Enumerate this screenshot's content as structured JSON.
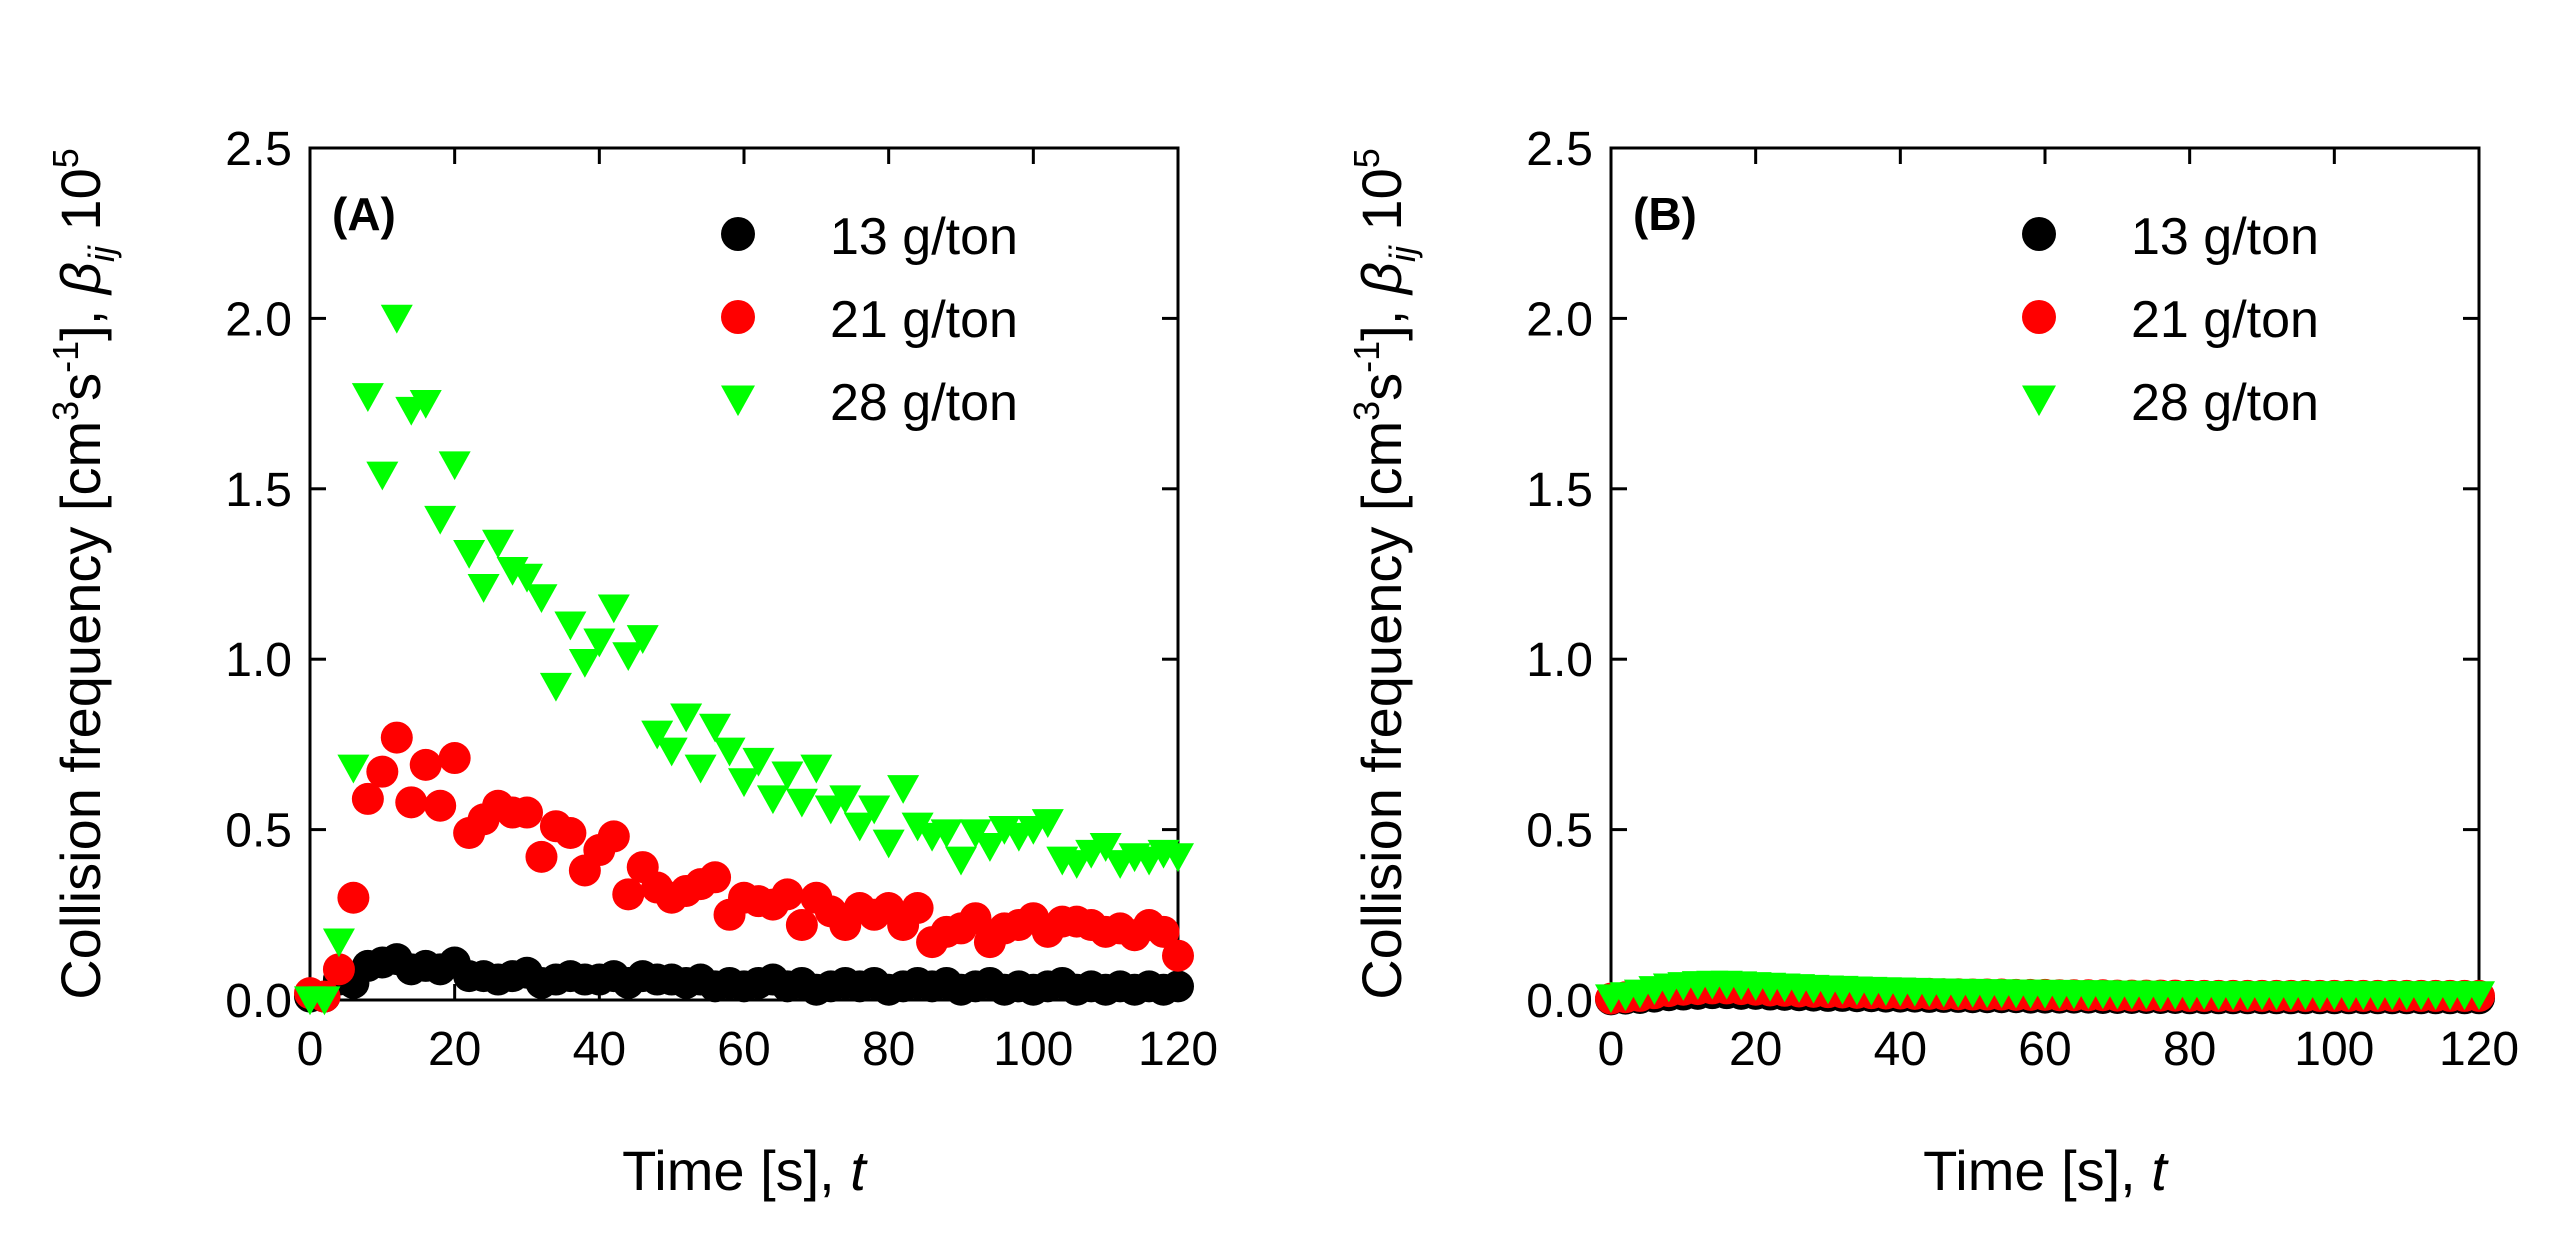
{
  "chart_data": [
    {
      "type": "scatter",
      "panel_label": "(A)",
      "xlabel": "Time [s], t",
      "ylabel": "Collision frequency [cm3s-1], βij 105",
      "xlim": [
        0,
        120
      ],
      "ylim": [
        0,
        2.5
      ],
      "x_ticks": [
        "0",
        "20",
        "40",
        "60",
        "80",
        "100",
        "120"
      ],
      "y_ticks": [
        "0.0",
        "0.5",
        "1.0",
        "1.5",
        "2.0",
        "2.5"
      ],
      "legend_position": "top-right",
      "series": [
        {
          "name": "13 g/ton",
          "marker": "circle",
          "color": "#000000",
          "x": [
            0,
            2,
            4,
            6,
            8,
            10,
            12,
            14,
            16,
            18,
            20,
            22,
            24,
            26,
            28,
            30,
            32,
            34,
            36,
            38,
            40,
            42,
            44,
            46,
            48,
            50,
            52,
            54,
            56,
            58,
            60,
            62,
            64,
            66,
            68,
            70,
            72,
            74,
            76,
            78,
            80,
            82,
            84,
            86,
            88,
            90,
            92,
            94,
            96,
            98,
            100,
            102,
            104,
            106,
            108,
            110,
            112,
            114,
            116,
            118,
            120
          ],
          "y": [
            0.01,
            0.01,
            0.06,
            0.05,
            0.1,
            0.11,
            0.12,
            0.09,
            0.1,
            0.09,
            0.11,
            0.07,
            0.07,
            0.06,
            0.07,
            0.08,
            0.05,
            0.06,
            0.07,
            0.06,
            0.06,
            0.07,
            0.05,
            0.07,
            0.06,
            0.06,
            0.05,
            0.06,
            0.04,
            0.05,
            0.04,
            0.05,
            0.06,
            0.04,
            0.05,
            0.03,
            0.04,
            0.05,
            0.04,
            0.05,
            0.03,
            0.04,
            0.05,
            0.04,
            0.05,
            0.03,
            0.04,
            0.05,
            0.03,
            0.04,
            0.03,
            0.04,
            0.05,
            0.03,
            0.04,
            0.03,
            0.04,
            0.03,
            0.04,
            0.03,
            0.04
          ]
        },
        {
          "name": "21 g/ton",
          "marker": "circle",
          "color": "#ff0000",
          "x": [
            0,
            2,
            4,
            6,
            8,
            10,
            12,
            14,
            16,
            18,
            20,
            22,
            24,
            26,
            28,
            30,
            32,
            34,
            36,
            38,
            40,
            42,
            44,
            46,
            48,
            50,
            52,
            54,
            56,
            58,
            60,
            62,
            64,
            66,
            68,
            70,
            72,
            74,
            76,
            78,
            80,
            82,
            84,
            86,
            88,
            90,
            92,
            94,
            96,
            98,
            100,
            102,
            104,
            106,
            108,
            110,
            112,
            114,
            116,
            118,
            120
          ],
          "y": [
            0.02,
            0.01,
            0.09,
            0.3,
            0.59,
            0.67,
            0.77,
            0.58,
            0.69,
            0.57,
            0.71,
            0.49,
            0.53,
            0.57,
            0.55,
            0.55,
            0.42,
            0.51,
            0.49,
            0.38,
            0.44,
            0.48,
            0.31,
            0.39,
            0.33,
            0.3,
            0.32,
            0.34,
            0.36,
            0.25,
            0.3,
            0.29,
            0.28,
            0.31,
            0.22,
            0.3,
            0.26,
            0.22,
            0.27,
            0.25,
            0.27,
            0.22,
            0.27,
            0.17,
            0.2,
            0.21,
            0.24,
            0.17,
            0.21,
            0.22,
            0.24,
            0.2,
            0.23,
            0.23,
            0.22,
            0.2,
            0.21,
            0.19,
            0.22,
            0.2,
            0.13
          ]
        },
        {
          "name": "28 g/ton",
          "marker": "triangle-down",
          "color": "#00ff00",
          "x": [
            0,
            2,
            4,
            6,
            8,
            10,
            12,
            14,
            16,
            18,
            20,
            22,
            24,
            26,
            28,
            30,
            32,
            34,
            36,
            38,
            40,
            42,
            44,
            46,
            48,
            50,
            52,
            54,
            56,
            58,
            60,
            62,
            64,
            66,
            68,
            70,
            72,
            74,
            76,
            78,
            80,
            82,
            84,
            86,
            88,
            90,
            92,
            94,
            96,
            98,
            100,
            102,
            104,
            106,
            108,
            110,
            112,
            114,
            116,
            118,
            120
          ],
          "y": [
            0.0,
            0.0,
            0.17,
            0.68,
            1.77,
            1.54,
            2.0,
            1.73,
            1.75,
            1.41,
            1.57,
            1.31,
            1.21,
            1.34,
            1.26,
            1.24,
            1.18,
            0.92,
            1.1,
            0.99,
            1.05,
            1.15,
            1.01,
            1.06,
            0.78,
            0.73,
            0.83,
            0.68,
            0.8,
            0.73,
            0.64,
            0.7,
            0.59,
            0.66,
            0.58,
            0.68,
            0.56,
            0.59,
            0.51,
            0.56,
            0.46,
            0.62,
            0.51,
            0.48,
            0.49,
            0.41,
            0.49,
            0.45,
            0.5,
            0.48,
            0.5,
            0.52,
            0.41,
            0.4,
            0.43,
            0.45,
            0.4,
            0.42,
            0.41,
            0.43,
            0.42
          ]
        }
      ]
    },
    {
      "type": "scatter",
      "panel_label": "(B)",
      "xlabel": "Time [s], t",
      "ylabel": "Collision frequency [cm3s-1], βij 105",
      "xlim": [
        0,
        120
      ],
      "ylim": [
        0,
        2.5
      ],
      "x_ticks": [
        "0",
        "20",
        "40",
        "60",
        "80",
        "100",
        "120"
      ],
      "y_ticks": [
        "0.0",
        "0.5",
        "1.0",
        "1.5",
        "2.0",
        "2.5"
      ],
      "legend_position": "top-right",
      "series": [
        {
          "name": "13 g/ton",
          "marker": "circle",
          "color": "#000000",
          "x": [
            0,
            2,
            4,
            6,
            8,
            10,
            12,
            14,
            16,
            18,
            20,
            22,
            24,
            26,
            28,
            30,
            32,
            34,
            36,
            38,
            40,
            42,
            44,
            46,
            48,
            50,
            52,
            54,
            56,
            58,
            60,
            62,
            64,
            66,
            68,
            70,
            72,
            74,
            76,
            78,
            80,
            82,
            84,
            86,
            88,
            90,
            92,
            94,
            96,
            98,
            100,
            102,
            104,
            106,
            108,
            110,
            112,
            114,
            116,
            118,
            120
          ],
          "y": [
            0.002,
            0.004,
            0.006,
            0.01,
            0.014,
            0.016,
            0.018,
            0.02,
            0.02,
            0.018,
            0.018,
            0.016,
            0.015,
            0.014,
            0.013,
            0.012,
            0.012,
            0.011,
            0.011,
            0.01,
            0.01,
            0.01,
            0.009,
            0.009,
            0.009,
            0.008,
            0.008,
            0.008,
            0.008,
            0.007,
            0.007,
            0.007,
            0.007,
            0.007,
            0.006,
            0.006,
            0.006,
            0.006,
            0.006,
            0.006,
            0.005,
            0.005,
            0.005,
            0.005,
            0.005,
            0.005,
            0.005,
            0.005,
            0.005,
            0.005,
            0.005,
            0.005,
            0.005,
            0.005,
            0.005,
            0.005,
            0.005,
            0.005,
            0.005,
            0.005,
            0.005
          ]
        },
        {
          "name": "21 g/ton",
          "marker": "circle",
          "color": "#ff0000",
          "x": [
            0,
            2,
            4,
            6,
            8,
            10,
            12,
            14,
            16,
            18,
            20,
            22,
            24,
            26,
            28,
            30,
            32,
            34,
            36,
            38,
            40,
            42,
            44,
            46,
            48,
            50,
            52,
            54,
            56,
            58,
            60,
            62,
            64,
            66,
            68,
            70,
            72,
            74,
            76,
            78,
            80,
            82,
            84,
            86,
            88,
            90,
            92,
            94,
            96,
            98,
            100,
            102,
            104,
            106,
            108,
            110,
            112,
            114,
            116,
            118,
            120
          ],
          "y": [
            0.004,
            0.008,
            0.012,
            0.02,
            0.026,
            0.03,
            0.032,
            0.034,
            0.034,
            0.032,
            0.03,
            0.028,
            0.027,
            0.025,
            0.024,
            0.023,
            0.022,
            0.021,
            0.02,
            0.019,
            0.019,
            0.018,
            0.018,
            0.017,
            0.017,
            0.016,
            0.016,
            0.016,
            0.015,
            0.015,
            0.015,
            0.014,
            0.014,
            0.014,
            0.014,
            0.013,
            0.013,
            0.013,
            0.013,
            0.013,
            0.012,
            0.012,
            0.012,
            0.012,
            0.012,
            0.012,
            0.012,
            0.012,
            0.012,
            0.012,
            0.012,
            0.012,
            0.012,
            0.012,
            0.012,
            0.012,
            0.012,
            0.012,
            0.012,
            0.012,
            0.012
          ]
        },
        {
          "name": "28 g/ton",
          "marker": "triangle-down",
          "color": "#00ff00",
          "x": [
            0,
            2,
            4,
            6,
            8,
            10,
            12,
            14,
            16,
            18,
            20,
            22,
            24,
            26,
            28,
            30,
            32,
            34,
            36,
            38,
            40,
            42,
            44,
            46,
            48,
            50,
            52,
            54,
            56,
            58,
            60,
            62,
            64,
            66,
            68,
            70,
            72,
            74,
            76,
            78,
            80,
            82,
            84,
            86,
            88,
            90,
            92,
            94,
            96,
            98,
            100,
            102,
            104,
            106,
            108,
            110,
            112,
            114,
            116,
            118,
            120
          ],
          "y": [
            0.006,
            0.012,
            0.02,
            0.03,
            0.038,
            0.042,
            0.045,
            0.046,
            0.046,
            0.044,
            0.042,
            0.04,
            0.038,
            0.036,
            0.034,
            0.032,
            0.031,
            0.029,
            0.028,
            0.027,
            0.026,
            0.025,
            0.024,
            0.023,
            0.022,
            0.022,
            0.021,
            0.021,
            0.02,
            0.02,
            0.019,
            0.019,
            0.018,
            0.018,
            0.018,
            0.017,
            0.017,
            0.017,
            0.016,
            0.016,
            0.016,
            0.016,
            0.015,
            0.015,
            0.015,
            0.015,
            0.015,
            0.015,
            0.015,
            0.015,
            0.015,
            0.015,
            0.015,
            0.015,
            0.015,
            0.015,
            0.015,
            0.015,
            0.015,
            0.015,
            0.015
          ]
        }
      ]
    }
  ]
}
